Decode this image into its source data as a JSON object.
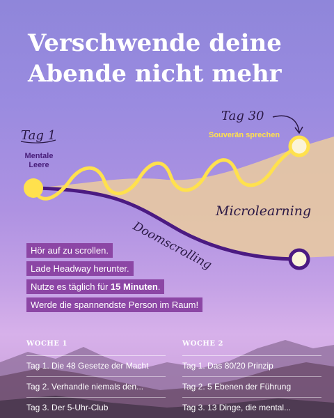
{
  "headline": {
    "line1": "Verschwende deine",
    "line2": "Abende nicht mehr"
  },
  "timeline": {
    "start_day": "Tag 1",
    "start_label_line1": "Mentale",
    "start_label_line2": "Leere",
    "end_day": "Tag 30",
    "end_label": "Souverän sprechen",
    "path_up_label": "Microlearning",
    "path_down_label": "Doomscrolling"
  },
  "steps": [
    {
      "text": "Hör auf zu scrollen.",
      "bold": "",
      "suffix": ""
    },
    {
      "text": "Lade Headway herunter.",
      "bold": "",
      "suffix": ""
    },
    {
      "text": "Nutze es täglich für ",
      "bold": "15 Minuten",
      "suffix": "."
    },
    {
      "text": "Werde die spannendste Person im Raum!",
      "bold": "",
      "suffix": ""
    }
  ],
  "weeks": [
    {
      "heading": "WOCHE 1",
      "items": [
        "Tag 1.  Die 48 Gesetze der Macht",
        "Tag 2. Verhandle niemals den...",
        "Tag 3. Der 5-Uhr-Club"
      ]
    },
    {
      "heading": "WOCHE 2",
      "items": [
        "Tag 1.  Das 80/20 Prinzip",
        "Tag 2. 5 Ebenen der Führung",
        "Tag 3. 13 Dinge, die mental..."
      ]
    }
  ],
  "colors": {
    "accent_yellow": "#ffe14d",
    "purple_line": "#4b1a82",
    "pill_bg": "#8c46a5",
    "band": "#e8c9a2"
  }
}
